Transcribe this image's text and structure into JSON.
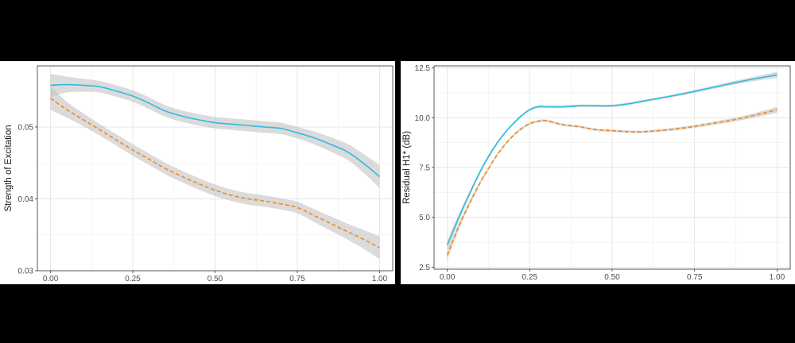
{
  "colors": {
    "background": "#000000",
    "panel": "#ffffff",
    "grid_major": "#e6e6e6",
    "grid_minor": "#f2f2f2",
    "ribbon": "#bdbdbd",
    "series_solid": "#2bbde0",
    "series_dashed": "#f08a1c"
  },
  "chart_data": [
    {
      "type": "line",
      "title": "",
      "xlabel": "",
      "ylabel": "Strength of Excitation",
      "xlim": [
        -0.04,
        1.04
      ],
      "ylim": [
        0.03,
        0.0585
      ],
      "x_ticks": [
        0,
        0.25,
        0.5,
        0.75,
        1
      ],
      "x_tick_labels": [
        "0.00",
        "0.25",
        "0.50",
        "0.75",
        "1.00"
      ],
      "y_ticks": [
        0.03,
        0.04,
        0.05
      ],
      "y_tick_labels": [
        "0.03",
        "0.04",
        "0.05"
      ],
      "grid": true,
      "legend": "none",
      "series": [
        {
          "style": "solid",
          "color": "#2bbde0",
          "x": [
            0,
            0.05,
            0.1,
            0.15,
            0.2,
            0.25,
            0.3,
            0.35,
            0.4,
            0.45,
            0.5,
            0.55,
            0.6,
            0.65,
            0.7,
            0.75,
            0.8,
            0.85,
            0.9,
            0.95,
            1.0
          ],
          "y": [
            0.0558,
            0.0559,
            0.0558,
            0.0556,
            0.055,
            0.0543,
            0.0533,
            0.0522,
            0.0515,
            0.051,
            0.0506,
            0.0504,
            0.0502,
            0.05,
            0.0498,
            0.0492,
            0.0485,
            0.0476,
            0.0466,
            0.045,
            0.0431
          ],
          "band": [
            0.0016,
            0.0011,
            0.0009,
            0.0008,
            0.0008,
            0.0008,
            0.0008,
            0.0008,
            0.0008,
            0.0008,
            0.0008,
            0.0008,
            0.0008,
            0.0008,
            0.0008,
            0.0008,
            0.0009,
            0.001,
            0.0011,
            0.0013,
            0.0016
          ]
        },
        {
          "style": "dashed",
          "color": "#f08a1c",
          "x": [
            0,
            0.05,
            0.1,
            0.15,
            0.2,
            0.25,
            0.3,
            0.35,
            0.4,
            0.45,
            0.5,
            0.55,
            0.6,
            0.65,
            0.7,
            0.75,
            0.8,
            0.85,
            0.9,
            0.95,
            1.0
          ],
          "y": [
            0.054,
            0.0524,
            0.051,
            0.0496,
            0.0482,
            0.0468,
            0.0455,
            0.0442,
            0.0431,
            0.0421,
            0.0412,
            0.0405,
            0.04,
            0.0397,
            0.0393,
            0.0388,
            0.0377,
            0.0366,
            0.0355,
            0.0344,
            0.0332
          ],
          "band": [
            0.0016,
            0.0011,
            0.0009,
            0.0008,
            0.0008,
            0.0008,
            0.0008,
            0.0008,
            0.0008,
            0.0008,
            0.0008,
            0.0008,
            0.0008,
            0.0008,
            0.0008,
            0.0008,
            0.0009,
            0.001,
            0.0011,
            0.0013,
            0.0016
          ]
        }
      ]
    },
    {
      "type": "line",
      "title": "",
      "xlabel": "",
      "ylabel": "Residual H1* (dB)",
      "xlim": [
        -0.04,
        1.04
      ],
      "ylim": [
        2.4,
        12.6
      ],
      "x_ticks": [
        0,
        0.25,
        0.5,
        0.75,
        1
      ],
      "x_tick_labels": [
        "0.00",
        "0.25",
        "0.50",
        "0.75",
        "1.00"
      ],
      "y_ticks": [
        2.5,
        5,
        7.5,
        10,
        12.5
      ],
      "y_tick_labels": [
        "2.5",
        "5.0",
        "7.5",
        "10.0",
        "12.5"
      ],
      "grid": true,
      "legend": "none",
      "series": [
        {
          "style": "solid",
          "color": "#2bbde0",
          "x": [
            0,
            0.025,
            0.05,
            0.075,
            0.1,
            0.125,
            0.15,
            0.175,
            0.2,
            0.225,
            0.25,
            0.275,
            0.3,
            0.35,
            0.4,
            0.45,
            0.5,
            0.55,
            0.6,
            0.7,
            0.8,
            0.9,
            1.0
          ],
          "y": [
            3.6,
            4.6,
            5.55,
            6.45,
            7.3,
            8.05,
            8.7,
            9.25,
            9.7,
            10.1,
            10.4,
            10.55,
            10.55,
            10.55,
            10.6,
            10.6,
            10.6,
            10.7,
            10.85,
            11.15,
            11.5,
            11.85,
            12.15
          ],
          "band": [
            0.25,
            0.2,
            0.15,
            0.12,
            0.1,
            0.08,
            0.07,
            0.06,
            0.06,
            0.06,
            0.06,
            0.06,
            0.06,
            0.06,
            0.06,
            0.06,
            0.06,
            0.06,
            0.06,
            0.07,
            0.08,
            0.1,
            0.15
          ]
        },
        {
          "style": "dashed",
          "color": "#f08a1c",
          "x": [
            0,
            0.025,
            0.05,
            0.075,
            0.1,
            0.125,
            0.15,
            0.175,
            0.2,
            0.225,
            0.25,
            0.275,
            0.3,
            0.35,
            0.4,
            0.45,
            0.5,
            0.55,
            0.6,
            0.7,
            0.8,
            0.9,
            1.0
          ],
          "y": [
            3.1,
            4.15,
            5.1,
            5.95,
            6.75,
            7.45,
            8.1,
            8.65,
            9.1,
            9.45,
            9.7,
            9.82,
            9.85,
            9.65,
            9.55,
            9.4,
            9.35,
            9.3,
            9.3,
            9.45,
            9.7,
            10.0,
            10.4
          ],
          "band": [
            0.25,
            0.2,
            0.15,
            0.12,
            0.1,
            0.08,
            0.07,
            0.06,
            0.06,
            0.06,
            0.06,
            0.06,
            0.06,
            0.06,
            0.06,
            0.06,
            0.06,
            0.06,
            0.06,
            0.07,
            0.08,
            0.1,
            0.15
          ]
        }
      ]
    }
  ]
}
